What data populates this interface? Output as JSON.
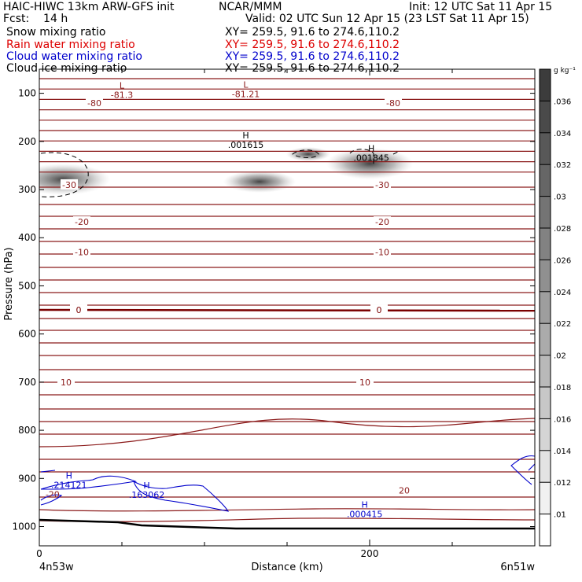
{
  "header": {
    "model": "HAIC-HIWC 13km ARW-GFS init",
    "org": "NCAR/MMM",
    "init": "Init: 12 UTC Sat 11 Apr 15",
    "fcst": "Fcst:    14 h",
    "valid": "Valid: 02 UTC Sun 12 Apr 15 (23 LST Sat 11 Apr 15)",
    "fields": [
      {
        "name": "Snow mixing ratio",
        "xy": "XY= 259.5, 91.6 to 274.6,110.2",
        "color": "#000000"
      },
      {
        "name": "Rain water mixing ratio",
        "xy": "XY= 259.5, 91.6 to 274.6,110.2",
        "color": "#dd0000"
      },
      {
        "name": "Cloud water mixing ratio",
        "xy": "XY= 259.5, 91.6 to 274.6,110.2",
        "color": "#0000cc"
      },
      {
        "name": "Cloud ice mixing ratio",
        "xy": "XY= 259.5, 91.6 to 274.6,110.2",
        "color": "#000000"
      }
    ]
  },
  "chart_data": {
    "type": "cross-section",
    "xlabel": "Distance (km)",
    "ylabel": "Pressure (hPa)",
    "xlim": [
      0,
      300
    ],
    "ylim": [
      1040,
      50
    ],
    "x_ticks": [
      0,
      200
    ],
    "x_minor_ticks": [
      50,
      100,
      150,
      250,
      300
    ],
    "y_ticks": [
      100,
      200,
      300,
      400,
      500,
      600,
      700,
      800,
      900,
      1000
    ],
    "x_endpoints": {
      "left": "4n53w",
      "right": "6n51w"
    },
    "colorbar": {
      "unit": "g kg⁻¹",
      "labels": [
        ".036",
        ".034",
        ".032",
        ".03",
        ".028",
        ".026",
        ".024",
        ".022",
        ".02",
        ".018",
        ".016",
        ".014",
        ".012",
        ".01"
      ]
    },
    "temperature_contours": [
      {
        "label": "-80",
        "p": 120,
        "color": "#8b1a1a"
      },
      {
        "label": "-30",
        "p": 290,
        "color": "#8b1a1a"
      },
      {
        "label": "-20",
        "p": 367,
        "color": "#8b1a1a"
      },
      {
        "label": "-10",
        "p": 430,
        "color": "#8b1a1a"
      },
      {
        "label": "0",
        "p": 550,
        "color": "#7a0000"
      },
      {
        "label": "10",
        "p": 700,
        "color": "#8b1a1a"
      },
      {
        "label": "20",
        "p": 925,
        "color": "#8b1a1a"
      }
    ],
    "extrema_labels": [
      {
        "type": "L",
        "value": "-81.3",
        "x": 50,
        "p": 110
      },
      {
        "type": "L",
        "value": "-81.21",
        "x": 125,
        "p": 108
      },
      {
        "type": "H",
        "value": ".001615",
        "x": 125,
        "p": 213
      },
      {
        "type": "H",
        "value": ".001845",
        "x": 201,
        "p": 240
      },
      {
        "type": "H",
        "value": ".214121",
        "x": 18,
        "p": 920
      },
      {
        "type": "H",
        "value": ".163062",
        "x": 65,
        "p": 940
      },
      {
        "type": "H",
        "value": ".000415",
        "x": 197,
        "p": 980
      }
    ],
    "inline_labels": [
      {
        "label": "-20",
        "x": 8,
        "p": 933,
        "color": "#8b1a1a"
      }
    ],
    "grid": false
  }
}
